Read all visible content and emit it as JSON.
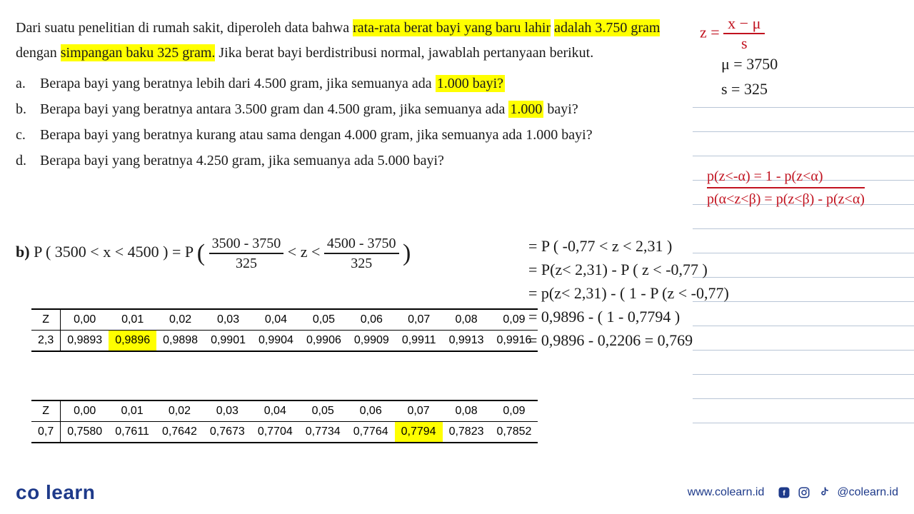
{
  "problem": {
    "intro_pre": "Dari suatu penelitian di rumah sakit, diperoleh data bahwa ",
    "hl1": "rata-rata berat bayi yang baru lahir",
    "intro_mid1": " ",
    "hl2": "adalah 3.750 gram",
    "intro_mid2": " dengan ",
    "hl3": "simpangan baku 325 gram.",
    "intro_post": " Jika berat bayi berdistribusi normal, jawablah pertanyaan berikut."
  },
  "questions": {
    "a": {
      "label": "a.",
      "pre": "Berapa bayi yang beratnya lebih dari 4.500 gram, jika semuanya ada ",
      "hl": "1.000 bayi?"
    },
    "b": {
      "label": "b.",
      "pre": "Berapa bayi yang beratnya antara 3.500 gram dan 4.500 gram, jika semuanya ada ",
      "hl": "1.000",
      "post": " bayi?"
    },
    "c": {
      "label": "c.",
      "text": "Berapa bayi yang beratnya kurang atau sama dengan 4.000 gram, jika semuanya ada 1.000 bayi?"
    },
    "d": {
      "label": "d.",
      "text": "Berapa bayi yang beratnya 4.250 gram, jika semuanya ada 5.000 bayi?"
    }
  },
  "formula": {
    "z_eq": "z =",
    "num": "x − μ",
    "den": "s",
    "mu": "μ = 3750",
    "s": "s = 325"
  },
  "rules": {
    "r1": "p(z<-α) = 1 - p(z<α)",
    "r2": "p(α<z<β) = p(z<β) - p(z<α)"
  },
  "work": {
    "label": "b)",
    "lhs": "P ( 3500 < x < 4500 )  =  P",
    "frac1_num": "3500 - 3750",
    "frac1_den": "325",
    "mid": "< z <",
    "frac2_num": "4500 - 3750",
    "frac2_den": "325"
  },
  "calc": {
    "l1": "= P ( -0,77  < z < 2,31 )",
    "l2": "= P(z< 2,31) - P ( z < -0,77 )",
    "l3": "= p(z< 2,31) - ( 1 - P (z < -0,77)",
    "l4": "=   0,9896 - ( 1 - 0,7794 )",
    "l5": "=   0,9896 - 0,2206 = 0,769"
  },
  "ztable1": {
    "hdr": [
      "Z",
      "0,00",
      "0,01",
      "0,02",
      "0,03",
      "0,04",
      "0,05",
      "0,06",
      "0,07",
      "0,08",
      "0,09"
    ],
    "row_label": "2,3",
    "row": [
      "0,9893",
      "0,9896",
      "0,9898",
      "0,9901",
      "0,9904",
      "0,9906",
      "0,9909",
      "0,9911",
      "0,9913",
      "0,9916"
    ],
    "hl_col": 1,
    "hl_color": "#ffff00"
  },
  "ztable2": {
    "hdr": [
      "Z",
      "0,00",
      "0,01",
      "0,02",
      "0,03",
      "0,04",
      "0,05",
      "0,06",
      "0,07",
      "0,08",
      "0,09"
    ],
    "row_label": "0,7",
    "row": [
      "0,7580",
      "0,7611",
      "0,7642",
      "0,7673",
      "0,7704",
      "0,7734",
      "0,7764",
      "0,7794",
      "0,7823",
      "0,7852"
    ],
    "hl_col": 7,
    "hl_color": "#ffff00"
  },
  "footer": {
    "logo_pre": "co",
    "logo_post": "learn",
    "url": "www.colearn.id",
    "handle": "@colearn.id"
  },
  "colors": {
    "highlight": "#ffff00",
    "handwrite_red": "#c1121f",
    "handwrite_black": "#1a1a1a",
    "brand": "#1e3a8a",
    "notebook_line": "#b8c5d6"
  }
}
